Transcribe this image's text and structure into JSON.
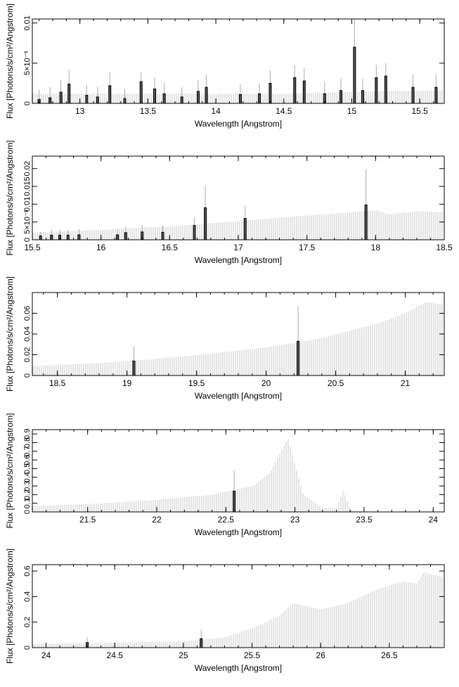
{
  "chart_data": [
    {
      "type": "bar",
      "xlabel": "Wavelength [Angstrom]",
      "ylabel": "Flux [Photons/s/cm²/Angstrom]",
      "xlim": [
        12.65,
        15.68
      ],
      "ylim": [
        0,
        0.0105
      ],
      "xticks": [
        13,
        13.5,
        14,
        14.5,
        15,
        15.5
      ],
      "xtick_labels": [
        "13",
        "13.5",
        "14",
        "14.5",
        "15",
        "15.5"
      ],
      "yticks": [
        0,
        0.005,
        0.01
      ],
      "ytick_labels": [
        "0",
        "5×10⁻³",
        "0.01"
      ],
      "detections": [
        {
          "x": 12.7,
          "y": 0.0005,
          "err": 0.0012
        },
        {
          "x": 12.78,
          "y": 0.0007,
          "err": 0.0013
        },
        {
          "x": 12.86,
          "y": 0.0014,
          "err": 0.0015
        },
        {
          "x": 12.92,
          "y": 0.0024,
          "err": 0.0018
        },
        {
          "x": 13.05,
          "y": 0.001,
          "err": 0.0013
        },
        {
          "x": 13.13,
          "y": 0.0008,
          "err": 0.0013
        },
        {
          "x": 13.22,
          "y": 0.0022,
          "err": 0.0017
        },
        {
          "x": 13.33,
          "y": 0.0006,
          "err": 0.0012
        },
        {
          "x": 13.45,
          "y": 0.0027,
          "err": 0.0012
        },
        {
          "x": 13.55,
          "y": 0.0018,
          "err": 0.0014
        },
        {
          "x": 13.62,
          "y": 0.0012,
          "err": 0.0013
        },
        {
          "x": 13.75,
          "y": 0.0008,
          "err": 0.0012
        },
        {
          "x": 13.87,
          "y": 0.0015,
          "err": 0.0014
        },
        {
          "x": 13.93,
          "y": 0.002,
          "err": 0.0016
        },
        {
          "x": 14.18,
          "y": 0.0011,
          "err": 0.0013
        },
        {
          "x": 14.32,
          "y": 0.0012,
          "err": 0.0013
        },
        {
          "x": 14.4,
          "y": 0.0025,
          "err": 0.0016
        },
        {
          "x": 14.58,
          "y": 0.0032,
          "err": 0.0016
        },
        {
          "x": 14.65,
          "y": 0.0028,
          "err": 0.0016
        },
        {
          "x": 14.8,
          "y": 0.0012,
          "err": 0.0014
        },
        {
          "x": 14.92,
          "y": 0.0016,
          "err": 0.0015
        },
        {
          "x": 15.02,
          "y": 0.007,
          "err": 0.0035
        },
        {
          "x": 15.08,
          "y": 0.0016,
          "err": 0.0015
        },
        {
          "x": 15.18,
          "y": 0.0032,
          "err": 0.0016
        },
        {
          "x": 15.25,
          "y": 0.0034,
          "err": 0.0016
        },
        {
          "x": 15.45,
          "y": 0.002,
          "err": 0.0016
        },
        {
          "x": 15.62,
          "y": 0.002,
          "err": 0.0016
        }
      ],
      "limit_envelope": [
        [
          12.65,
          0.0012
        ],
        [
          13.5,
          0.0012
        ],
        [
          14.5,
          0.0012
        ],
        [
          15.2,
          0.0015
        ],
        [
          15.68,
          0.0016
        ]
      ]
    },
    {
      "type": "bar",
      "xlabel": "Wavelength [Angstrom]",
      "ylabel": "Flux [Photons/s/cm²/Angstrom]",
      "xlim": [
        15.5,
        18.5
      ],
      "ylim": [
        0,
        0.0235
      ],
      "xticks": [
        15.5,
        16,
        16.5,
        17,
        17.5,
        18,
        18.5
      ],
      "xtick_labels": [
        "15.5",
        "16",
        "16.5",
        "17",
        "17.5",
        "18",
        "18.5"
      ],
      "yticks": [
        0,
        0.005,
        0.01,
        0.015,
        0.02
      ],
      "ytick_labels": [
        "0",
        "5×10⁻³",
        "0.01",
        "0.015",
        "0.02"
      ],
      "detections": [
        {
          "x": 15.56,
          "y": 0.0011,
          "err": 0.0011
        },
        {
          "x": 15.64,
          "y": 0.0013,
          "err": 0.0015
        },
        {
          "x": 15.7,
          "y": 0.0013,
          "err": 0.0015
        },
        {
          "x": 15.76,
          "y": 0.0013,
          "err": 0.0015
        },
        {
          "x": 15.84,
          "y": 0.0014,
          "err": 0.0016
        },
        {
          "x": 16.12,
          "y": 0.0014,
          "err": 0.0016
        },
        {
          "x": 16.18,
          "y": 0.002,
          "err": 0.0018
        },
        {
          "x": 16.3,
          "y": 0.0022,
          "err": 0.0019
        },
        {
          "x": 16.45,
          "y": 0.0021,
          "err": 0.0019
        },
        {
          "x": 16.68,
          "y": 0.004,
          "err": 0.0022
        },
        {
          "x": 16.76,
          "y": 0.009,
          "err": 0.006
        },
        {
          "x": 17.05,
          "y": 0.006,
          "err": 0.0036
        },
        {
          "x": 17.93,
          "y": 0.0098,
          "err": 0.01
        }
      ],
      "limit_envelope": [
        [
          15.5,
          0.002
        ],
        [
          16.0,
          0.0028
        ],
        [
          16.5,
          0.0038
        ],
        [
          17.0,
          0.0052
        ],
        [
          17.5,
          0.0068
        ],
        [
          17.9,
          0.008
        ],
        [
          18.0,
          0.0083
        ],
        [
          18.1,
          0.0072
        ],
        [
          18.3,
          0.008
        ],
        [
          18.5,
          0.0078
        ]
      ]
    },
    {
      "type": "bar",
      "xlabel": "Wavelength [Angstrom]",
      "ylabel": "Flux [Photons/s/cm²/Angstrom]",
      "xlim": [
        18.32,
        21.28
      ],
      "ylim": [
        0,
        0.08
      ],
      "xticks": [
        18.5,
        19,
        19.5,
        20,
        20.5,
        21
      ],
      "xtick_labels": [
        "18.5",
        "19",
        "19.5",
        "20",
        "20.5",
        "21"
      ],
      "yticks": [
        0,
        0.02,
        0.04,
        0.06
      ],
      "ytick_labels": [
        "0",
        "0.02",
        "0.04",
        "0.06"
      ],
      "detections": [
        {
          "x": 19.05,
          "y": 0.014,
          "err": 0.014
        },
        {
          "x": 20.23,
          "y": 0.033,
          "err": 0.034
        }
      ],
      "limit_envelope": [
        [
          18.32,
          0.009
        ],
        [
          18.8,
          0.012
        ],
        [
          19.2,
          0.016
        ],
        [
          19.6,
          0.021
        ],
        [
          20.0,
          0.027
        ],
        [
          20.4,
          0.036
        ],
        [
          20.8,
          0.05
        ],
        [
          21.0,
          0.06
        ],
        [
          21.15,
          0.071
        ],
        [
          21.28,
          0.068
        ]
      ]
    },
    {
      "type": "bar",
      "xlabel": "Wavelength [Angstrom]",
      "ylabel": "Flux [Photons/s/cm²/Angstrom]",
      "xlim": [
        21.1,
        24.08
      ],
      "ylim": [
        0,
        0.95
      ],
      "xticks": [
        21.5,
        22,
        22.5,
        23,
        23.5,
        24
      ],
      "xtick_labels": [
        "21.5",
        "22",
        "22.5",
        "23",
        "23.5",
        "24"
      ],
      "yticks": [
        0,
        0.1,
        0.2,
        0.3,
        0.4,
        0.5,
        0.6,
        0.7,
        0.8,
        0.9
      ],
      "ytick_labels": [
        "0",
        "0.1",
        "0.2",
        "0.3",
        "0.4",
        "0.5",
        "0.6",
        "0.7",
        "0.8",
        "0.9"
      ],
      "detections": [
        {
          "x": 22.56,
          "y": 0.24,
          "err": 0.24
        }
      ],
      "limit_envelope": [
        [
          21.1,
          0.07
        ],
        [
          21.5,
          0.09
        ],
        [
          22.0,
          0.14
        ],
        [
          22.4,
          0.2
        ],
        [
          22.7,
          0.3
        ],
        [
          22.82,
          0.45
        ],
        [
          22.9,
          0.7
        ],
        [
          22.95,
          0.85
        ],
        [
          23.0,
          0.55
        ],
        [
          23.06,
          0.2
        ],
        [
          23.2,
          0.05
        ],
        [
          23.3,
          0.04
        ],
        [
          23.35,
          0.25
        ],
        [
          23.4,
          0.03
        ],
        [
          23.45,
          0.0
        ],
        [
          24.08,
          0.0
        ]
      ]
    },
    {
      "type": "bar",
      "xlabel": "Wavelength [Angstrom]",
      "ylabel": "Flux [Photons/s/cm²/Angstrom]",
      "xlim": [
        23.9,
        26.9
      ],
      "ylim": [
        0,
        0.65
      ],
      "xticks": [
        24,
        24.5,
        25,
        25.5,
        26,
        26.5
      ],
      "xtick_labels": [
        "24",
        "24.5",
        "25",
        "25.5",
        "26",
        "26.5"
      ],
      "yticks": [
        0,
        0.2,
        0.4,
        0.6
      ],
      "ytick_labels": [
        "0",
        "0.2",
        "0.4",
        "0.6"
      ],
      "detections": [
        {
          "x": 24.3,
          "y": 0.04,
          "err": 0.04
        },
        {
          "x": 25.13,
          "y": 0.07,
          "err": 0.07
        }
      ],
      "limit_envelope": [
        [
          23.9,
          0.03
        ],
        [
          24.5,
          0.04
        ],
        [
          25.0,
          0.05
        ],
        [
          25.3,
          0.08
        ],
        [
          25.5,
          0.15
        ],
        [
          25.7,
          0.25
        ],
        [
          25.8,
          0.35
        ],
        [
          26.0,
          0.3
        ],
        [
          26.2,
          0.35
        ],
        [
          26.4,
          0.45
        ],
        [
          26.6,
          0.52
        ],
        [
          26.7,
          0.5
        ],
        [
          26.75,
          0.59
        ],
        [
          26.9,
          0.55
        ]
      ]
    }
  ]
}
